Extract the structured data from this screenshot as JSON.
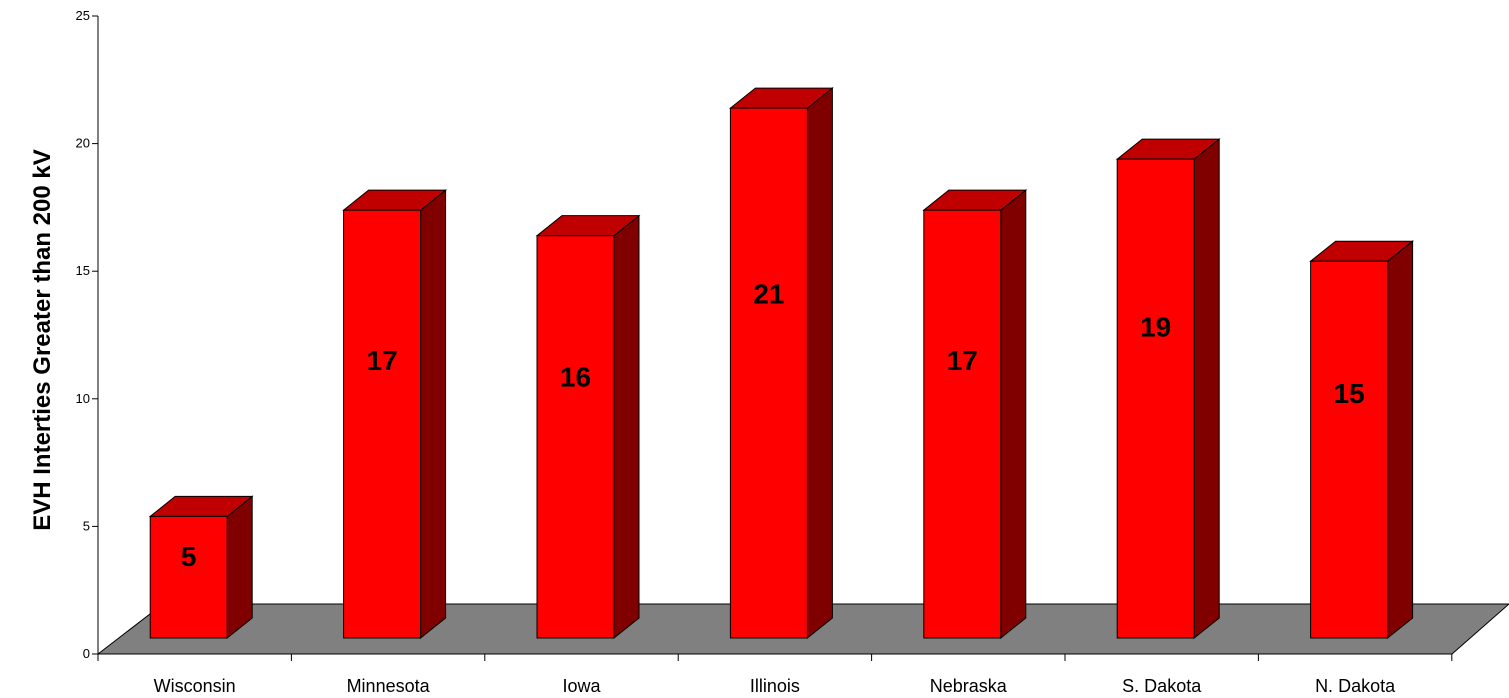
{
  "chart_data": {
    "type": "bar",
    "title": "",
    "xlabel": "",
    "ylabel": "EVH Interties Greater than 200 kV",
    "categories": [
      "Wisconsin",
      "Minnesota",
      "Iowa",
      "Illinois",
      "Nebraska",
      "S. Dakota",
      "N. Dakota"
    ],
    "values": [
      5,
      17,
      16,
      21,
      17,
      19,
      15
    ],
    "data_labels": [
      "5",
      "17",
      "16",
      "21",
      "17",
      "19",
      "15"
    ],
    "ylim": [
      0,
      25
    ],
    "yticks": [
      "0",
      "5",
      "10",
      "15",
      "20",
      "25"
    ],
    "grid": false,
    "legend": "none",
    "style": "3d-column",
    "colors": {
      "bar_front": "#ff0000",
      "bar_top": "#c00000",
      "bar_side": "#800000",
      "floor": "#808080",
      "outline": "#000000"
    }
  }
}
